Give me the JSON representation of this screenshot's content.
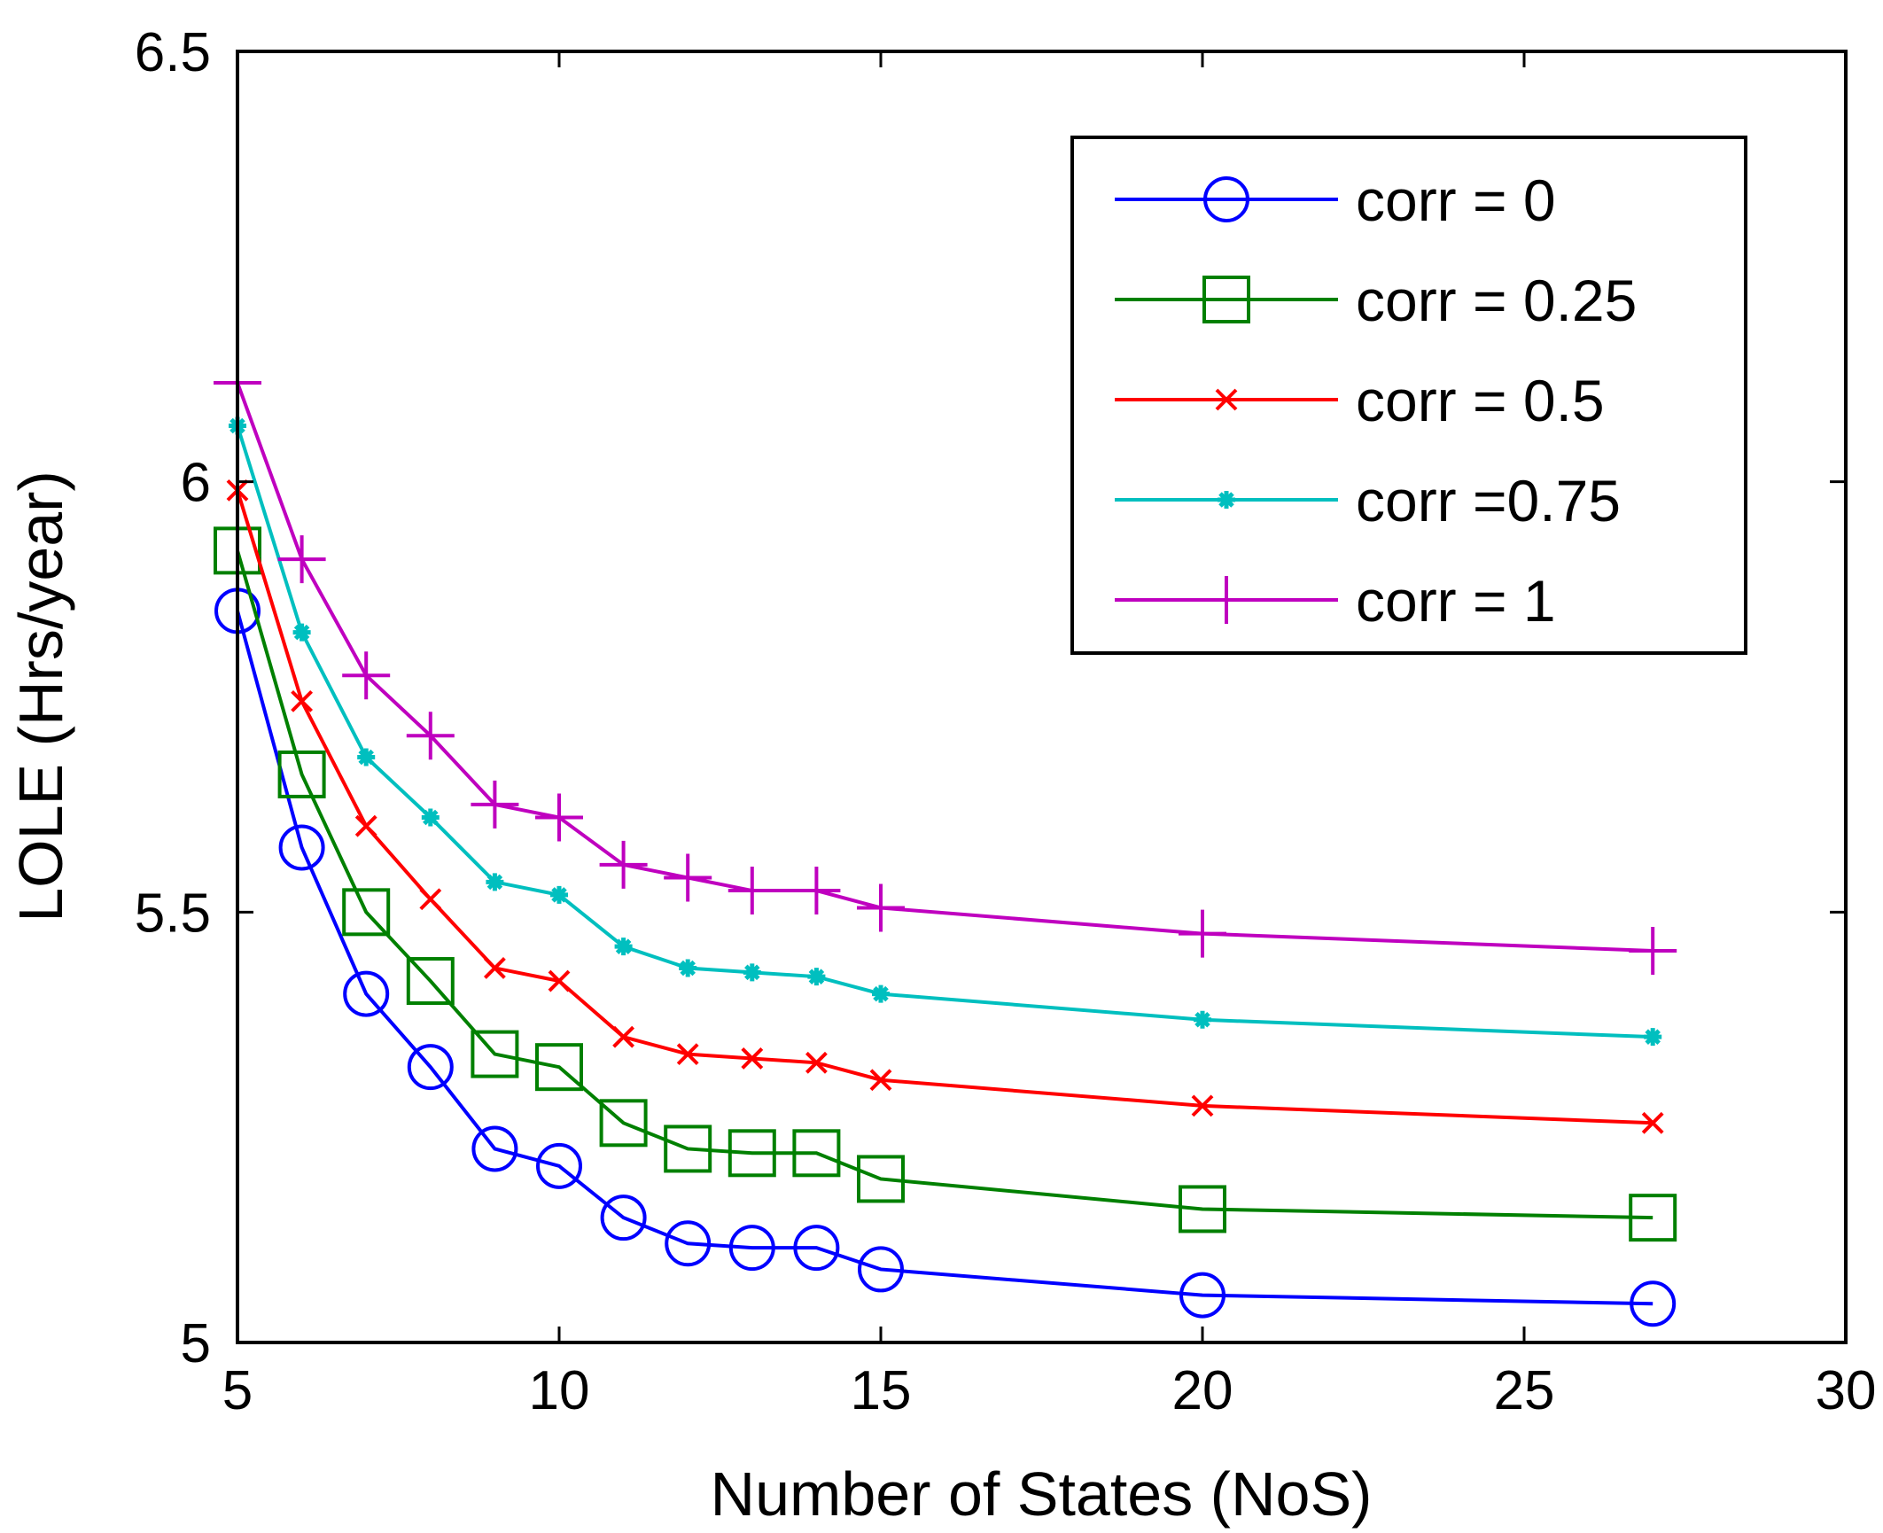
{
  "chart_data": {
    "type": "line",
    "title": "",
    "xlabel": "Number of States (NoS)",
    "ylabel": "LOLE (Hrs/year)",
    "xlim": [
      5,
      30
    ],
    "ylim": [
      5,
      6.5
    ],
    "xticks": [
      5,
      10,
      15,
      20,
      25,
      30
    ],
    "xtick_labels": [
      "5",
      "10",
      "15",
      "20",
      "25",
      "30"
    ],
    "yticks": [
      5,
      5.5,
      6,
      6.5
    ],
    "ytick_labels": [
      "5",
      "5.5",
      "6",
      "6.5"
    ],
    "grid": false,
    "legend_position": "top-right",
    "x": [
      5,
      6,
      7,
      8,
      9,
      10,
      11,
      12,
      13,
      14,
      15,
      20,
      27
    ],
    "series": [
      {
        "name": "corr = 0",
        "color": "#0000ff",
        "marker": "circle",
        "values": [
          5.85,
          5.575,
          5.405,
          5.32,
          5.225,
          5.205,
          5.145,
          5.115,
          5.11,
          5.11,
          5.085,
          5.055,
          5.045
        ]
      },
      {
        "name": "corr = 0.25",
        "color": "#008000",
        "marker": "square",
        "values": [
          5.92,
          5.66,
          5.5,
          5.42,
          5.335,
          5.32,
          5.255,
          5.225,
          5.22,
          5.22,
          5.19,
          5.155,
          5.145
        ]
      },
      {
        "name": "corr = 0.5",
        "color": "#ff0000",
        "marker": "x",
        "values": [
          5.99,
          5.745,
          5.6,
          5.515,
          5.435,
          5.42,
          5.355,
          5.335,
          5.33,
          5.325,
          5.305,
          5.275,
          5.255
        ]
      },
      {
        "name": "corr =0.75",
        "color": "#00bfbf",
        "marker": "star",
        "values": [
          6.065,
          5.825,
          5.68,
          5.61,
          5.535,
          5.52,
          5.46,
          5.435,
          5.43,
          5.425,
          5.405,
          5.375,
          5.355
        ]
      },
      {
        "name": "corr = 1",
        "color": "#bf00bf",
        "marker": "plus",
        "values": [
          6.115,
          5.91,
          5.775,
          5.705,
          5.625,
          5.61,
          5.555,
          5.54,
          5.525,
          5.525,
          5.505,
          5.475,
          5.455
        ]
      }
    ]
  }
}
